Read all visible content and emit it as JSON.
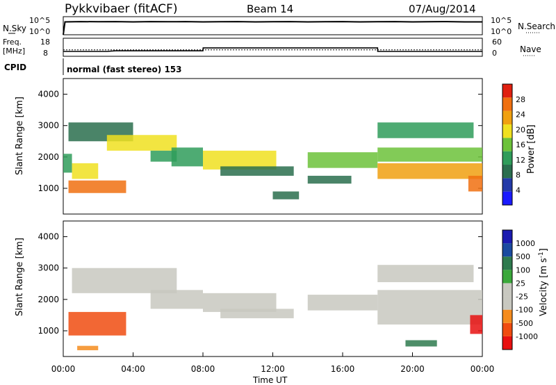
{
  "header": {
    "station": "Pykkvibaer (fitACF)",
    "beam": "Beam 14",
    "date": "07/Aug/2014"
  },
  "side_labels": {
    "nsky": "N.Sky",
    "nsearch": "N.Search",
    "freq_top": "Freq.",
    "freq_unit": "[MHz]",
    "cpid": "CPID",
    "nave": "Nave"
  },
  "cpid_text": "normal (fast stereo) 153",
  "colors": {
    "power_scale": [
      "#1a1aff",
      "#233aa8",
      "#2a6e4e",
      "#2f9c5a",
      "#6cc23a",
      "#f0e020",
      "#f0a010",
      "#f07010",
      "#e02010"
    ],
    "velocity_scale": [
      "#e81010",
      "#f04c10",
      "#f58c1e",
      "#c8c8c0",
      "#c8c8c0",
      "#3aa83a",
      "#2e7a4e",
      "#1a4aa0",
      "#1a1ab0"
    ]
  },
  "chart_data": [
    {
      "type": "line",
      "name_panel": "noise",
      "ylabel_left": "N.Sky",
      "ylabel_right": "N.Search",
      "left_ticks": [
        "10^5",
        "10^0"
      ],
      "right_ticks": [
        "10^5",
        "10^0"
      ],
      "x_hours": [
        0,
        0.1,
        1,
        2,
        3,
        4,
        5,
        6,
        7,
        8,
        9,
        10,
        11,
        12,
        13,
        14,
        15,
        16,
        17,
        18,
        19,
        20,
        21,
        22,
        23,
        24
      ],
      "nsky_log": [
        0,
        4.2,
        4.3,
        4.25,
        4.3,
        4.2,
        4.3,
        4.25,
        4.3,
        4.2,
        4.25,
        4.3,
        4.2,
        4.25,
        4.3,
        4.2,
        4.25,
        4.3,
        4.2,
        4.25,
        4.3,
        4.2,
        4.25,
        4.3,
        4.2,
        4.2
      ]
    },
    {
      "type": "line",
      "name_panel": "frequency",
      "freq_ticks": [
        "18",
        "8"
      ],
      "nave_ticks": [
        "60",
        "0"
      ],
      "freq_x": [
        0,
        0.4,
        2.5,
        3.0,
        8.0,
        8.01,
        18.0,
        18.01,
        24
      ],
      "freq_mhz": [
        11.2,
        11.2,
        11.2,
        11.6,
        11.6,
        13.5,
        13.5,
        11.2,
        11.2
      ],
      "nave_level": 23
    },
    {
      "type": "heatmap",
      "title": "Power [dB]",
      "ylabel": "Slant Range [km]",
      "yticks": [
        "4000",
        "3000",
        "2000",
        "1000"
      ],
      "ylim": [
        180,
        4500
      ],
      "colorbar_ticks": [
        "28",
        "24",
        "20",
        "16",
        "12",
        "8",
        "4"
      ],
      "bands": [
        {
          "x0": 0.0,
          "x1": 0.5,
          "y0": 1500,
          "y1": 2100,
          "level": 3
        },
        {
          "x0": 0.3,
          "x1": 3.6,
          "y0": 850,
          "y1": 1250,
          "level": 7
        },
        {
          "x0": 0.5,
          "x1": 2.0,
          "y0": 1300,
          "y1": 1800,
          "level": 5
        },
        {
          "x0": 0.3,
          "x1": 4.0,
          "y0": 2500,
          "y1": 3100,
          "level": 2
        },
        {
          "x0": 2.5,
          "x1": 6.5,
          "y0": 2200,
          "y1": 2700,
          "level": 5
        },
        {
          "x0": 5.0,
          "x1": 6.5,
          "y0": 1850,
          "y1": 2200,
          "level": 3
        },
        {
          "x0": 6.2,
          "x1": 8.0,
          "y0": 1700,
          "y1": 2300,
          "level": 3
        },
        {
          "x0": 8.0,
          "x1": 12.2,
          "y0": 1600,
          "y1": 2200,
          "level": 5
        },
        {
          "x0": 9.0,
          "x1": 13.2,
          "y0": 1400,
          "y1": 1700,
          "level": 2
        },
        {
          "x0": 12.0,
          "x1": 13.5,
          "y0": 650,
          "y1": 900,
          "level": 2
        },
        {
          "x0": 14.0,
          "x1": 18.0,
          "y0": 1650,
          "y1": 2150,
          "level": 4
        },
        {
          "x0": 14.0,
          "x1": 16.5,
          "y0": 1150,
          "y1": 1400,
          "level": 2
        },
        {
          "x0": 18.0,
          "x1": 23.5,
          "y0": 2600,
          "y1": 3100,
          "level": 3
        },
        {
          "x0": 18.0,
          "x1": 24.0,
          "y0": 1300,
          "y1": 1800,
          "level": 6
        },
        {
          "x0": 18.0,
          "x1": 24.0,
          "y0": 1850,
          "y1": 2300,
          "level": 4
        },
        {
          "x0": 23.2,
          "x1": 24.0,
          "y0": 900,
          "y1": 1400,
          "level": 7
        }
      ],
      "xlim": [
        0,
        24
      ]
    },
    {
      "type": "heatmap",
      "title": "Velocity [m s^-1]",
      "ylabel": "Slant Range [km]",
      "xlabel": "Time UT",
      "yticks": [
        "4000",
        "3000",
        "2000",
        "1000"
      ],
      "ylim": [
        180,
        4500
      ],
      "xticks": [
        "00:00",
        "04:00",
        "08:00",
        "12:00",
        "16:00",
        "20:00",
        "00:00"
      ],
      "colorbar_ticks": [
        "1000",
        "500",
        "100",
        "25",
        "-25",
        "-100",
        "-500",
        "-1000"
      ],
      "bands": [
        {
          "x0": 0.3,
          "x1": 3.6,
          "y0": 850,
          "y1": 1600,
          "level": 1
        },
        {
          "x0": 0.5,
          "x1": 6.5,
          "y0": 2200,
          "y1": 3000,
          "level": 3
        },
        {
          "x0": 5.0,
          "x1": 8.0,
          "y0": 1700,
          "y1": 2300,
          "level": 3
        },
        {
          "x0": 8.0,
          "x1": 12.2,
          "y0": 1600,
          "y1": 2200,
          "level": 3
        },
        {
          "x0": 9.0,
          "x1": 13.2,
          "y0": 1400,
          "y1": 1700,
          "level": 3
        },
        {
          "x0": 14.0,
          "x1": 18.0,
          "y0": 1650,
          "y1": 2150,
          "level": 3
        },
        {
          "x0": 18.0,
          "x1": 23.5,
          "y0": 2550,
          "y1": 3100,
          "level": 3
        },
        {
          "x0": 18.0,
          "x1": 24.0,
          "y0": 1200,
          "y1": 2300,
          "level": 3
        },
        {
          "x0": 23.3,
          "x1": 24.0,
          "y0": 900,
          "y1": 1500,
          "level": 0
        },
        {
          "x0": 19.6,
          "x1": 21.4,
          "y0": 500,
          "y1": 700,
          "level": 6
        },
        {
          "x0": 0.8,
          "x1": 2.0,
          "y0": 380,
          "y1": 520,
          "level": 2
        }
      ],
      "xlim": [
        0,
        24
      ]
    }
  ]
}
